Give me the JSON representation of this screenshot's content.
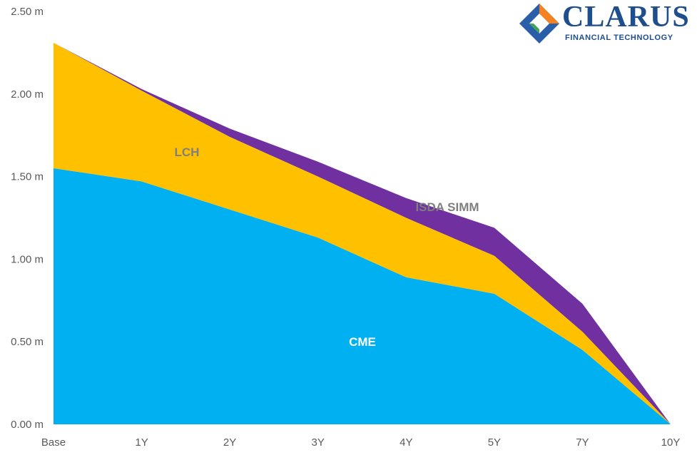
{
  "chart_data": {
    "type": "area",
    "stacked": true,
    "categories": [
      "Base",
      "1Y",
      "2Y",
      "3Y",
      "4Y",
      "5Y",
      "7Y",
      "10Y"
    ],
    "series": [
      {
        "name": "CME",
        "values": [
          1.55,
          1.47,
          1.3,
          1.13,
          0.89,
          0.79,
          0.45,
          0.0
        ],
        "color": "#00b0f0"
      },
      {
        "name": "LCH",
        "values": [
          0.76,
          0.55,
          0.44,
          0.37,
          0.36,
          0.23,
          0.11,
          0.0
        ],
        "color": "#ffc000"
      },
      {
        "name": "ISDA SIMM",
        "values": [
          0.0,
          0.01,
          0.05,
          0.09,
          0.12,
          0.17,
          0.17,
          0.0
        ],
        "color": "#7030a0"
      }
    ],
    "yticks": [
      "0.00 m",
      "0.50 m",
      "1.00 m",
      "1.50 m",
      "2.00 m",
      "2.50 m"
    ],
    "ylim": [
      0,
      2.5
    ],
    "grid": false,
    "legend": "inline labels",
    "title": "",
    "xlabel": "",
    "ylabel": ""
  },
  "labels": {
    "cme": "CME",
    "lch": "LCH",
    "simm": "ISDA SIMM"
  },
  "logo": {
    "name": "CLARUS",
    "tagline": "FINANCIAL TECHNOLOGY"
  }
}
